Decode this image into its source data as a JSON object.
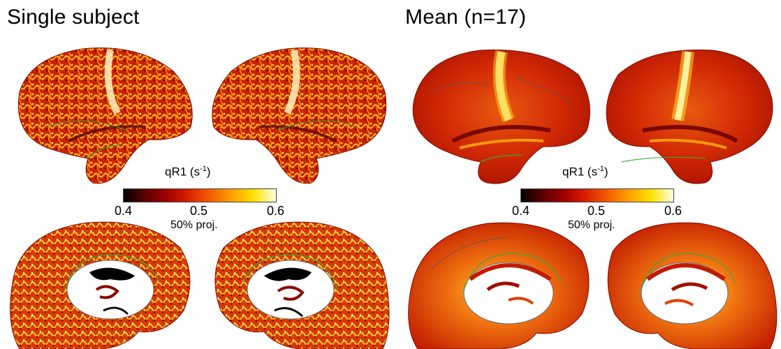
{
  "titles": {
    "left": "Single subject",
    "right": "Mean (n=17)"
  },
  "colorbar": {
    "label_prefix": "qR1 (s",
    "label_exp": "-1",
    "label_suffix": ")",
    "ticks": [
      "0.4",
      "0.5",
      "0.6"
    ],
    "note": "50% proj."
  },
  "colors": {
    "dark_red": "#8a0a00",
    "red": "#c81a00",
    "orange": "#ef5a00",
    "yellow": "#ffd21a",
    "pale": "#fff7c8",
    "contour": "#3aa83a"
  }
}
